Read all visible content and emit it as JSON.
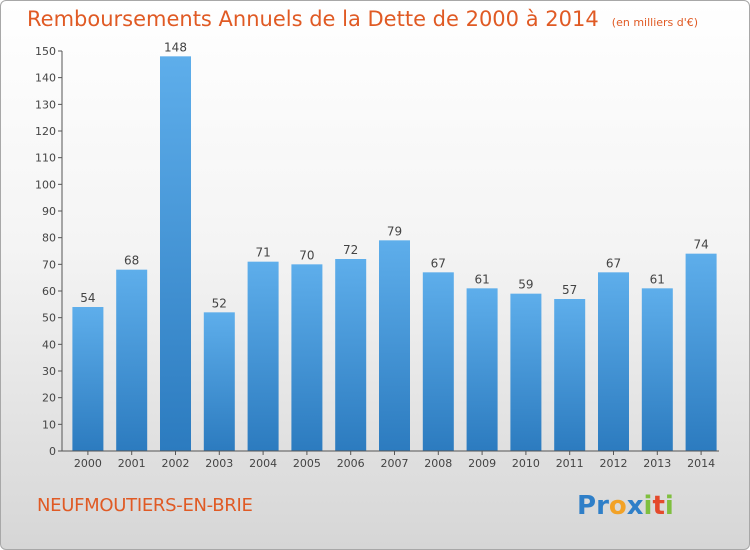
{
  "title": "Remboursements Annuels de la Dette de 2000 à 2014",
  "subtitle": "(en milliers d'€)",
  "footer": {
    "city": "NEUFMOUTIERS-EN-BRIE"
  },
  "logo": {
    "text": "Proxiti",
    "letters": [
      {
        "ch": "P",
        "color": "#2f7fc8"
      },
      {
        "ch": "r",
        "color": "#2f7fc8"
      },
      {
        "ch": "o",
        "color": "#f2a227"
      },
      {
        "ch": "x",
        "color": "#2f7fc8"
      },
      {
        "ch": "i",
        "color": "#7fbf3f"
      },
      {
        "ch": "t",
        "color": "#e44a2c"
      },
      {
        "ch": "i",
        "color": "#7fbf3f"
      }
    ]
  },
  "colors": {
    "title": "#e05a24",
    "bar_light": "#5eaeeb",
    "bar_dark": "#2c7bbf"
  },
  "chart_data": {
    "type": "bar",
    "categories": [
      "2000",
      "2001",
      "2002",
      "2003",
      "2004",
      "2005",
      "2006",
      "2007",
      "2008",
      "2009",
      "2010",
      "2011",
      "2012",
      "2013",
      "2014"
    ],
    "values": [
      54,
      68,
      148,
      52,
      71,
      70,
      72,
      79,
      67,
      61,
      59,
      57,
      67,
      61,
      74
    ],
    "ylim": [
      0,
      150
    ],
    "yticks": [
      0,
      10,
      20,
      30,
      40,
      50,
      60,
      70,
      80,
      90,
      100,
      110,
      120,
      130,
      140,
      150
    ],
    "grid": false,
    "data_labels": true
  }
}
